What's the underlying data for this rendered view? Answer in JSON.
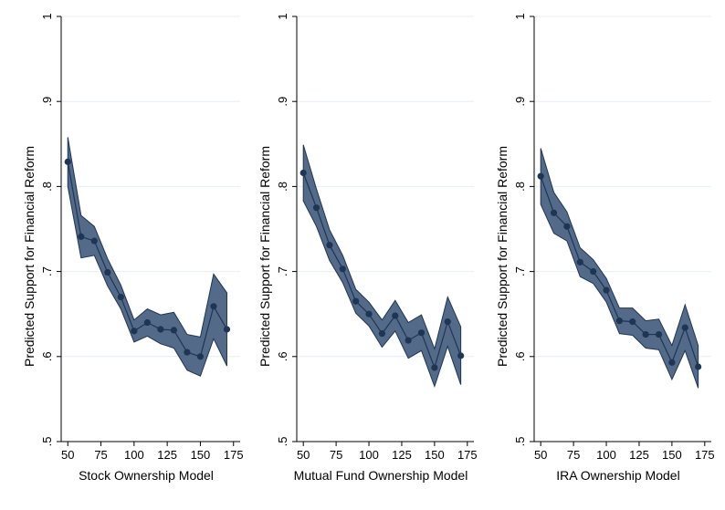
{
  "chart_data": [
    {
      "type": "line",
      "xlabel": "Stock Ownership Model",
      "ylabel": "Predicted Support for Financial Reform",
      "xlim": [
        45,
        180
      ],
      "ylim": [
        0.5,
        1
      ],
      "xticks": [
        50,
        75,
        100,
        125,
        150,
        175
      ],
      "yticks": [
        0.5,
        0.6,
        0.7,
        0.8,
        0.9,
        1
      ],
      "ytick_labels": [
        ".5",
        ".6",
        ".7",
        ".8",
        ".9",
        "1"
      ],
      "grid": true,
      "x": [
        50,
        60,
        70,
        80,
        90,
        100,
        110,
        120,
        130,
        140,
        150,
        160,
        170
      ],
      "y": [
        0.829,
        0.741,
        0.736,
        0.699,
        0.67,
        0.63,
        0.64,
        0.632,
        0.631,
        0.605,
        0.6,
        0.659,
        0.632
      ],
      "lower": [
        0.8,
        0.716,
        0.719,
        0.683,
        0.656,
        0.617,
        0.624,
        0.615,
        0.61,
        0.584,
        0.577,
        0.621,
        0.589
      ],
      "upper": [
        0.858,
        0.766,
        0.753,
        0.715,
        0.684,
        0.643,
        0.656,
        0.649,
        0.652,
        0.626,
        0.623,
        0.697,
        0.675
      ]
    },
    {
      "type": "line",
      "xlabel": "Mutual Fund Ownership Model",
      "ylabel": "Predicted Support for Financial Reform",
      "xlim": [
        45,
        180
      ],
      "ylim": [
        0.5,
        1
      ],
      "xticks": [
        50,
        75,
        100,
        125,
        150,
        175
      ],
      "yticks": [
        0.5,
        0.6,
        0.7,
        0.8,
        0.9,
        1
      ],
      "ytick_labels": [
        ".5",
        ".6",
        ".7",
        ".8",
        ".9",
        "1"
      ],
      "grid": true,
      "x": [
        50,
        60,
        70,
        80,
        90,
        100,
        110,
        120,
        130,
        140,
        150,
        160,
        170
      ],
      "y": [
        0.816,
        0.775,
        0.731,
        0.703,
        0.665,
        0.65,
        0.627,
        0.648,
        0.619,
        0.628,
        0.587,
        0.641,
        0.601
      ],
      "lower": [
        0.783,
        0.753,
        0.713,
        0.687,
        0.651,
        0.636,
        0.611,
        0.63,
        0.598,
        0.607,
        0.565,
        0.612,
        0.567
      ],
      "upper": [
        0.849,
        0.797,
        0.749,
        0.719,
        0.679,
        0.664,
        0.643,
        0.666,
        0.64,
        0.649,
        0.609,
        0.67,
        0.635
      ]
    },
    {
      "type": "line",
      "xlabel": "IRA Ownership Model",
      "ylabel": "Predicted Support for Financial Reform",
      "xlim": [
        45,
        180
      ],
      "ylim": [
        0.5,
        1
      ],
      "xticks": [
        50,
        75,
        100,
        125,
        150,
        175
      ],
      "yticks": [
        0.5,
        0.6,
        0.7,
        0.8,
        0.9,
        1
      ],
      "ytick_labels": [
        ".5",
        ".6",
        ".7",
        ".8",
        ".9",
        "1"
      ],
      "grid": true,
      "x": [
        50,
        60,
        70,
        80,
        90,
        100,
        110,
        120,
        130,
        140,
        150,
        160,
        170
      ],
      "y": [
        0.812,
        0.769,
        0.753,
        0.711,
        0.7,
        0.678,
        0.642,
        0.641,
        0.626,
        0.626,
        0.593,
        0.634,
        0.588
      ],
      "lower": [
        0.779,
        0.745,
        0.736,
        0.694,
        0.686,
        0.664,
        0.627,
        0.625,
        0.61,
        0.608,
        0.573,
        0.607,
        0.563
      ],
      "upper": [
        0.845,
        0.793,
        0.77,
        0.728,
        0.714,
        0.692,
        0.657,
        0.657,
        0.642,
        0.644,
        0.613,
        0.661,
        0.613
      ]
    }
  ],
  "colors": {
    "band": "#4a6282",
    "line": "#1f3554",
    "band_edge": "#1f3554",
    "grid": "#e8eef2",
    "axis": "#000000"
  }
}
